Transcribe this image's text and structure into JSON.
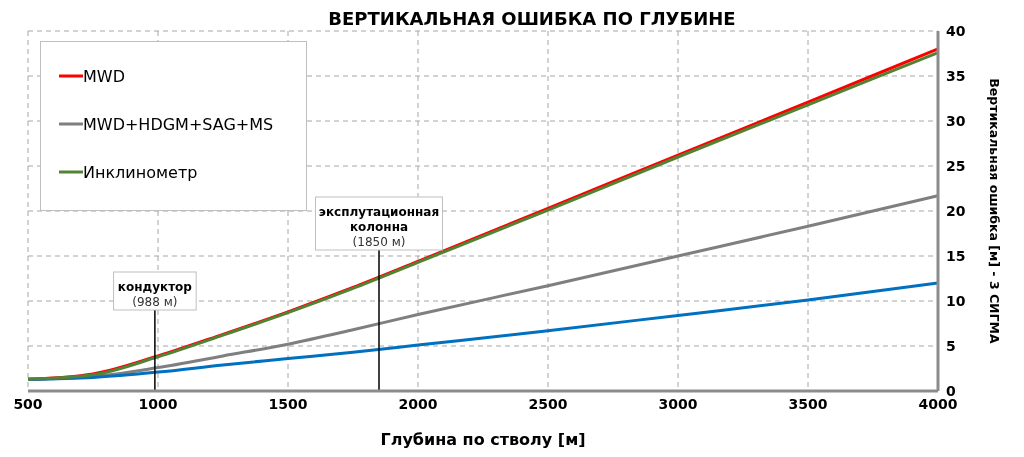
{
  "chart_data": {
    "type": "line",
    "title": "ВЕРТИКАЛЬНАЯ ОШИБКА ПО ГЛУБИНЕ",
    "xlabel": "Глубина по стволу [м]",
    "y2label": "Вертикальная ошибка [м] - 3 СИГМА",
    "x": [
      500,
      750,
      1000,
      1250,
      1500,
      1750,
      2000,
      2500,
      3000,
      3500,
      4000
    ],
    "series": [
      {
        "name": "MWD",
        "color": "#ff0000",
        "axis": "y2",
        "values": [
          1.3,
          1.9,
          3.9,
          6.3,
          8.8,
          11.5,
          14.4,
          20.3,
          26.2,
          32.1,
          38.0
        ]
      },
      {
        "name": "MWD+HDGM+SAG+MS",
        "color": "#7f7f7f",
        "axis": "y2",
        "values": [
          1.3,
          1.6,
          2.6,
          3.9,
          5.2,
          6.8,
          8.5,
          11.7,
          15.0,
          18.3,
          21.7
        ]
      },
      {
        "color": "#0070c0",
        "axis": "y2",
        "values": [
          1.3,
          1.5,
          2.1,
          2.9,
          3.6,
          4.3,
          5.1,
          6.7,
          8.4,
          10.1,
          12.0
        ]
      },
      {
        "name": "Инклинометр",
        "color": "#548235",
        "axis": "y2",
        "values": [
          1.3,
          1.8,
          3.8,
          6.2,
          8.7,
          11.4,
          14.3,
          20.1,
          26.0,
          31.8,
          37.6
        ]
      }
    ],
    "xlim": [
      500,
      4000
    ],
    "xticks": [
      500,
      1000,
      1500,
      2000,
      2500,
      3000,
      3500,
      4000
    ],
    "y2lim": [
      0,
      40
    ],
    "y2ticks": [
      0,
      5,
      10,
      15,
      20,
      25,
      30,
      35,
      40
    ],
    "ref_lines": [
      {
        "axis": "x",
        "value": 988,
        "label": "кондуктор\n(988 м)",
        "color": "#000000"
      },
      {
        "axis": "x",
        "value": 1850,
        "label": "эксплутационная\nколонна\n(1850 м)",
        "color": "#000000"
      }
    ],
    "grid": true,
    "legend": "top left",
    "marker": "none",
    "line_style": "solid"
  }
}
